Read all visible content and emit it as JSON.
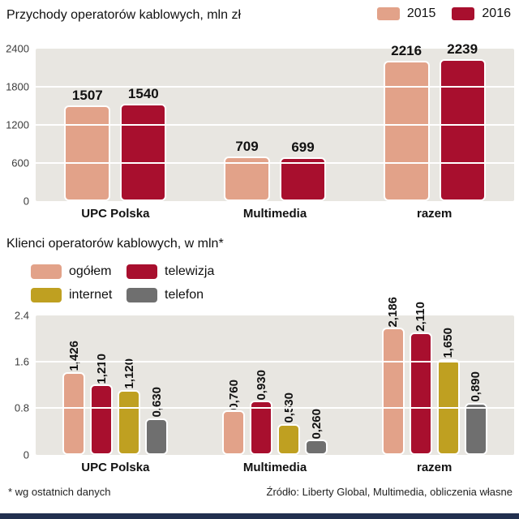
{
  "page": {
    "footer_left": "* wg ostatnich danych",
    "footer_right": "Źródło: Liberty Global, Multimedia, obliczenia własne"
  },
  "colors": {
    "salmon": "#e2a289",
    "crimson": "#a80f2e",
    "gold": "#bfa021",
    "gray": "#6f6f6f",
    "plot_background": "#e8e6e1",
    "gridline": "#ffffff",
    "bottom_bar": "#22304f"
  },
  "chart_data": [
    {
      "type": "bar",
      "title": "Przychody operatorów kablowych, mln zł",
      "categories": [
        "UPC Polska",
        "Multimedia",
        "razem"
      ],
      "series": [
        {
          "name": "2015",
          "color": "#e2a289",
          "values": [
            1507,
            709,
            2216
          ],
          "labels": [
            "1507",
            "709",
            "2216"
          ]
        },
        {
          "name": "2016",
          "color": "#a80f2e",
          "values": [
            1540,
            699,
            2239
          ],
          "labels": [
            "1540",
            "699",
            "2239"
          ]
        }
      ],
      "xlabel": "",
      "ylabel": "",
      "ylim": [
        0,
        2400
      ],
      "yticks": [
        "0",
        "600",
        "1200",
        "1800",
        "2400"
      ],
      "grid": true,
      "legend_position": "top-right",
      "label_rotation": "horizontal"
    },
    {
      "type": "bar",
      "title": "Klienci operatorów kablowych, w mln*",
      "categories": [
        "UPC Polska",
        "Multimedia",
        "razem"
      ],
      "series": [
        {
          "name": "ogółem",
          "color": "#e2a289",
          "values": [
            1.426,
            0.76,
            2.186
          ],
          "labels": [
            "1,426",
            "0,760",
            "2,186"
          ]
        },
        {
          "name": "telewizja",
          "color": "#a80f2e",
          "values": [
            1.21,
            0.93,
            2.11
          ],
          "labels": [
            "1,210",
            "0,930",
            "2,110"
          ]
        },
        {
          "name": "internet",
          "color": "#bfa021",
          "values": [
            1.12,
            0.53,
            1.65
          ],
          "labels": [
            "1,120",
            "0,530",
            "1,650"
          ]
        },
        {
          "name": "telefon",
          "color": "#6f6f6f",
          "values": [
            0.63,
            0.26,
            0.89
          ],
          "labels": [
            "0,630",
            "0,260",
            "0,890"
          ]
        }
      ],
      "xlabel": "",
      "ylabel": "",
      "ylim": [
        0,
        2.4
      ],
      "yticks": [
        "0",
        "0.8",
        "1.6",
        "2.4"
      ],
      "grid": true,
      "legend_position": "top-left",
      "label_rotation": "vertical"
    }
  ]
}
